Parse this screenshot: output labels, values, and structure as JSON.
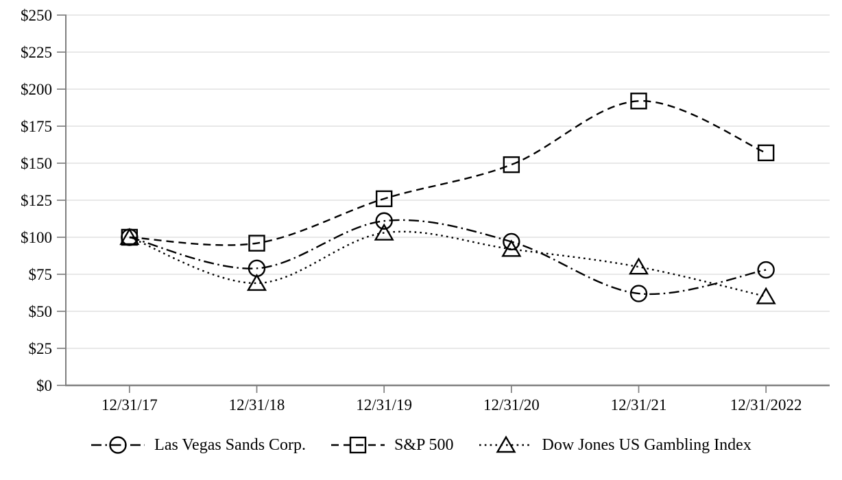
{
  "chart_data": {
    "type": "line",
    "title": "",
    "categories": [
      "12/31/17",
      "12/31/18",
      "12/31/19",
      "12/31/20",
      "12/31/21",
      "12/31/2022"
    ],
    "series": [
      {
        "name": "Las Vegas Sands Corp.",
        "marker": "circle",
        "line_style": "dash-dot",
        "color": "#000000",
        "values": [
          100,
          79,
          111,
          97,
          62,
          78
        ]
      },
      {
        "name": "S&P 500",
        "marker": "square",
        "line_style": "dashed",
        "color": "#000000",
        "values": [
          100,
          96,
          126,
          149,
          192,
          157
        ]
      },
      {
        "name": "Dow Jones US Gambling Index",
        "marker": "triangle",
        "line_style": "dotted",
        "color": "#000000",
        "values": [
          100,
          69,
          103,
          92,
          80,
          60
        ]
      }
    ],
    "x_axis": {
      "tick_labels": [
        "12/31/17",
        "12/31/18",
        "12/31/19",
        "12/31/20",
        "12/31/21",
        "12/31/2022"
      ]
    },
    "y_axis": {
      "min": 0,
      "max": 250,
      "step": 25,
      "tick_labels": [
        "$0",
        "$25",
        "$50",
        "$75",
        "$100",
        "$125",
        "$150",
        "$175",
        "$200",
        "$225",
        "$250"
      ]
    },
    "ylim": [
      0,
      250
    ],
    "grid": "horizontal",
    "legend_position": "bottom",
    "colors": {
      "background": "#ffffff",
      "axis": "#7f7f7f",
      "gridline": "#dadada",
      "text": "#000000",
      "series_stroke": "#000000"
    }
  }
}
